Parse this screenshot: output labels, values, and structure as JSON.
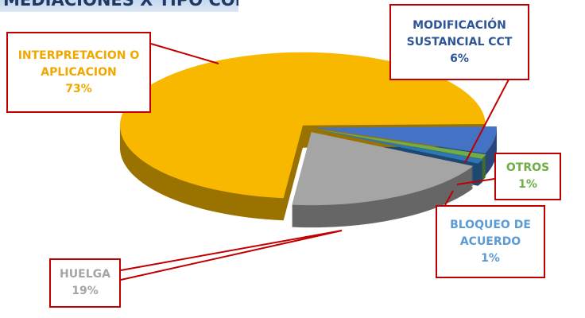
{
  "chart_data": {
    "type": "pie",
    "title": "MEDIACIONES X TIPO CONFLICTO",
    "categories": [
      "MODIFICACIÓN SUSTANCIAL CCT",
      "OTROS",
      "BLOQUEO DE ACUERDO",
      "HUELGA",
      "INTERPRETACION O APLICACION"
    ],
    "values": [
      6,
      1,
      1,
      19,
      73
    ],
    "value_labels": [
      "6%",
      "1%",
      "1%",
      "19%",
      "73%"
    ],
    "colors": [
      "#4472c4",
      "#70ad47",
      "#2e75b6",
      "#a5a5a5",
      "#f9b800"
    ],
    "label_colors": [
      "#2f5597",
      "#70ad47",
      "#5b9bd5",
      "#a5a5a5",
      "#f0a800"
    ]
  }
}
